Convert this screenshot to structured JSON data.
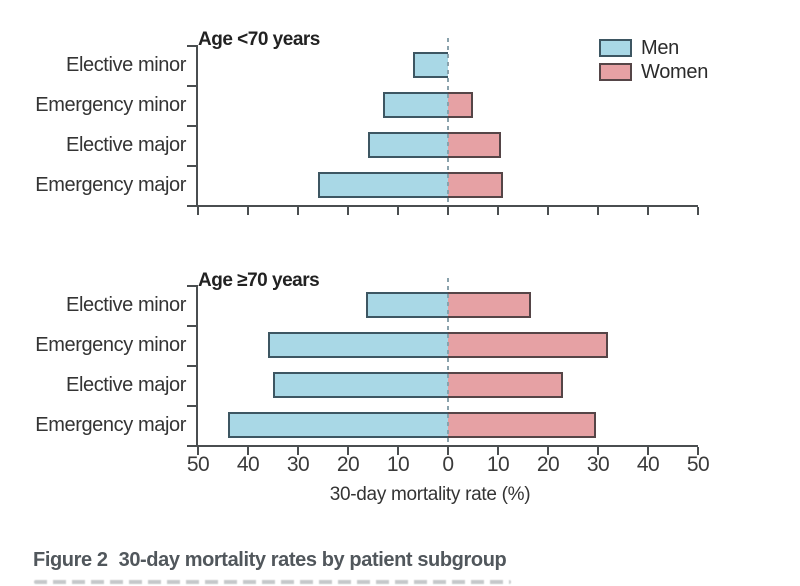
{
  "figure": {
    "caption_prefix": "Figure 2",
    "caption_text": "30-day mortality rates by patient subgroup",
    "xlabel": "30-day mortality rate (%)"
  },
  "legend": {
    "position": "top-right",
    "items": [
      {
        "label": "Men",
        "color": "#a9d8e6"
      },
      {
        "label": "Women",
        "color": "#e6a1a4"
      }
    ]
  },
  "colors": {
    "men_fill": "#a9d8e6",
    "men_border": "#3d5662",
    "women_fill": "#e6a1a4",
    "women_border": "#554547",
    "axis": "#4a4e50",
    "zero_line": "#8aa2ac",
    "caption": "#51575c"
  },
  "chart_data": [
    {
      "type": "bar",
      "variant": "diverging-horizontal",
      "title": "Age <70 years",
      "categories": [
        "Elective minor",
        "Emergency minor",
        "Elective major",
        "Emergency major"
      ],
      "series": [
        {
          "name": "Men",
          "side": "left",
          "values": [
            7,
            13,
            16,
            26
          ]
        },
        {
          "name": "Women",
          "side": "right",
          "values": [
            0,
            5,
            10.5,
            11
          ]
        }
      ],
      "xlim": [
        -50,
        50
      ],
      "x_ticks": [
        "50",
        "40",
        "30",
        "20",
        "10",
        "0",
        "10",
        "20",
        "30",
        "40",
        "50"
      ],
      "x_tick_labels_shown": false,
      "xlabel": "",
      "zero_line": "dashed",
      "grid": false
    },
    {
      "type": "bar",
      "variant": "diverging-horizontal",
      "title": "Age ≥70 years",
      "categories": [
        "Elective minor",
        "Emergency minor",
        "Elective major",
        "Emergency major"
      ],
      "series": [
        {
          "name": "Men",
          "side": "left",
          "values": [
            16.5,
            36,
            35,
            44
          ]
        },
        {
          "name": "Women",
          "side": "right",
          "values": [
            16.5,
            32,
            23,
            29.5
          ]
        }
      ],
      "xlim": [
        -50,
        50
      ],
      "x_ticks": [
        "50",
        "40",
        "30",
        "20",
        "10",
        "0",
        "10",
        "20",
        "30",
        "40",
        "50"
      ],
      "x_tick_labels_shown": true,
      "xlabel": "30-day mortality rate (%)",
      "zero_line": "dashed",
      "grid": false
    }
  ]
}
